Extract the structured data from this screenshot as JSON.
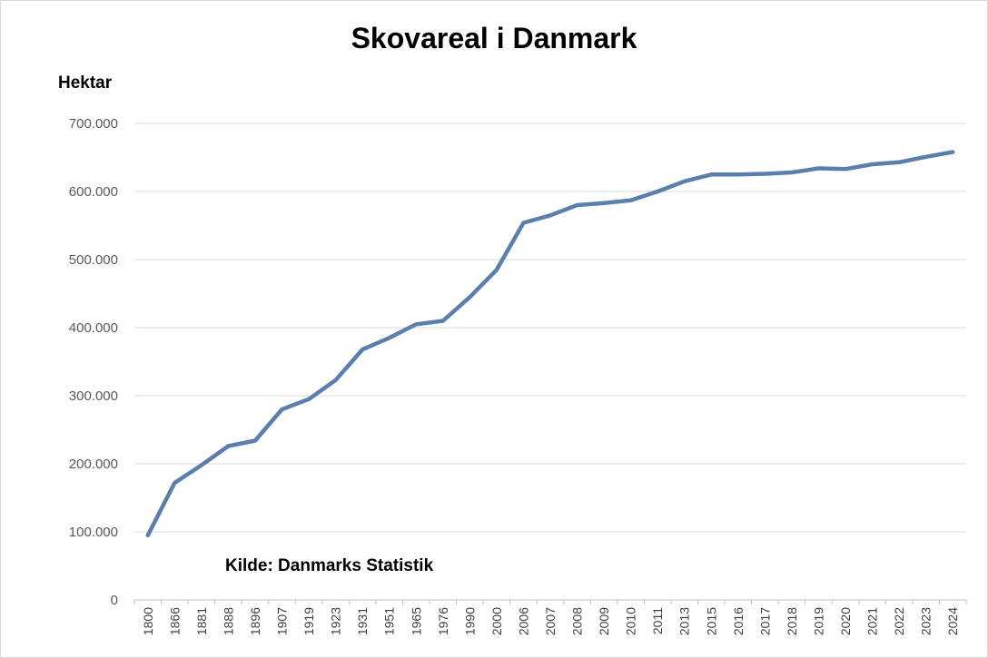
{
  "chart_data": {
    "type": "line",
    "title": "Skovareal i Danmark",
    "ylabel": "Hektar",
    "xlabel": "",
    "source": "Kilde: Danmarks Statistik",
    "ylim": [
      0,
      700000
    ],
    "y_ticks": [
      0,
      100000,
      200000,
      300000,
      400000,
      500000,
      600000,
      700000
    ],
    "y_tick_labels": [
      "0",
      "100.000",
      "200.000",
      "300.000",
      "400.000",
      "500.000",
      "600.000",
      "700.000"
    ],
    "grid": true,
    "legend": "none",
    "line_color": "#5b7fad",
    "categories": [
      "1800",
      "1866",
      "1881",
      "1888",
      "1896",
      "1907",
      "1919",
      "1923",
      "1931",
      "1951",
      "1965",
      "1976",
      "1990",
      "2000",
      "2006",
      "2007",
      "2008",
      "2009",
      "2010",
      "2011",
      "2013",
      "2015",
      "2016",
      "2017",
      "2018",
      "2019",
      "2020",
      "2021",
      "2022",
      "2023",
      "2024"
    ],
    "series": [
      {
        "values": [
          95000,
          172000,
          198000,
          226000,
          234000,
          280000,
          295000,
          323000,
          368000,
          385000,
          405000,
          410000,
          445000,
          485000,
          554000,
          565000,
          580000,
          583000,
          587000,
          600000,
          615000,
          625000,
          625000,
          626000,
          628000,
          634000,
          633000,
          640000,
          643000,
          651000,
          658000
        ]
      }
    ]
  }
}
